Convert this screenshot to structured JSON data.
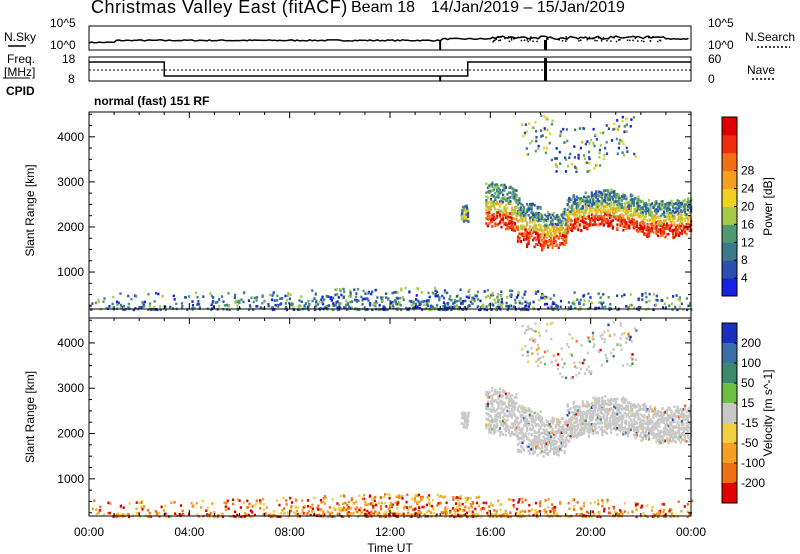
{
  "header": {
    "station": "Christmas Valley East (fitACF)",
    "beam": "Beam 18",
    "date_range": "14/Jan/2019 – 15/Jan/2019"
  },
  "panels": {
    "nsky": {
      "label": "N.Sky",
      "right_label": "N.Search",
      "left_ticks": [
        "10^5",
        "10^0"
      ],
      "right_ticks": [
        "10^5",
        "10^0"
      ]
    },
    "freq": {
      "label_top": "Freq.",
      "label_unit": "[MHz]",
      "right_label": "Nave",
      "left_ticks": [
        "18",
        "8"
      ],
      "right_ticks": [
        "60",
        "0"
      ]
    },
    "cpid": {
      "label": "CPID",
      "text": "normal (fast) 151 RF"
    }
  },
  "chart_data": [
    {
      "type": "heatmap",
      "title": "",
      "xlabel": "",
      "ylabel": "Slant Range [km]",
      "xlim": [
        "00:00",
        "24:00"
      ],
      "ylim": [
        180,
        4550
      ],
      "yticks": [
        1000,
        2000,
        3000,
        4000
      ],
      "colorbar": {
        "label": "Power [dB]",
        "ticks": [
          "4",
          "8",
          "12",
          "16",
          "20",
          "24",
          "28"
        ],
        "colors": [
          "#1520e0",
          "#2a4fb0",
          "#3a7a8a",
          "#4f9a70",
          "#a6c94a",
          "#f0d020",
          "#f5a020",
          "#f27015",
          "#ee3010",
          "#e00000"
        ]
      },
      "scatter_regions": [
        {
          "hours": [
            0.0,
            24.0
          ],
          "range_km": [
            200,
            600
          ],
          "level": "4-12 dB"
        },
        {
          "hours": [
            14.8,
            15.1
          ],
          "range_km": [
            2150,
            2500
          ],
          "level": "8-16 dB"
        },
        {
          "hours": [
            15.8,
            24.0
          ],
          "range_km": [
            1800,
            2900
          ],
          "level": "4-28 dB"
        },
        {
          "hours": [
            17.2,
            21.8
          ],
          "range_km": [
            3600,
            4500
          ],
          "level": "4-16 dB"
        }
      ]
    },
    {
      "type": "heatmap",
      "title": "",
      "xlabel": "Time UT",
      "ylabel": "Slant Range [km]",
      "xlim": [
        "00:00",
        "24:00"
      ],
      "ylim": [
        180,
        4550
      ],
      "xticks": [
        "00:00",
        "04:00",
        "08:00",
        "12:00",
        "16:00",
        "20:00",
        "00:00"
      ],
      "yticks": [
        1000,
        2000,
        3000,
        4000
      ],
      "colorbar": {
        "label": "Velocity [m s^-1]",
        "ticks": [
          "200",
          "100",
          "50",
          "15",
          "-15",
          "-50",
          "-100",
          "-200"
        ],
        "colors": [
          "#1a2fc0",
          "#3a6fa8",
          "#3b8a6e",
          "#6cc040",
          "#c8c8c8",
          "#f0d040",
          "#f5a020",
          "#f07015",
          "#e00000"
        ]
      },
      "scatter_regions": [
        {
          "hours": [
            0.0,
            24.0
          ],
          "range_km": [
            200,
            700
          ],
          "level": "-50 to -200 m/s"
        },
        {
          "hours": [
            14.8,
            15.1
          ],
          "range_km": [
            2150,
            2500
          ],
          "level": "ground scatter"
        },
        {
          "hours": [
            15.8,
            24.0
          ],
          "range_km": [
            1700,
            2800
          ],
          "level": "ground scatter"
        },
        {
          "hours": [
            17.2,
            21.8
          ],
          "range_km": [
            3400,
            4500
          ],
          "level": "mixed"
        }
      ]
    }
  ]
}
